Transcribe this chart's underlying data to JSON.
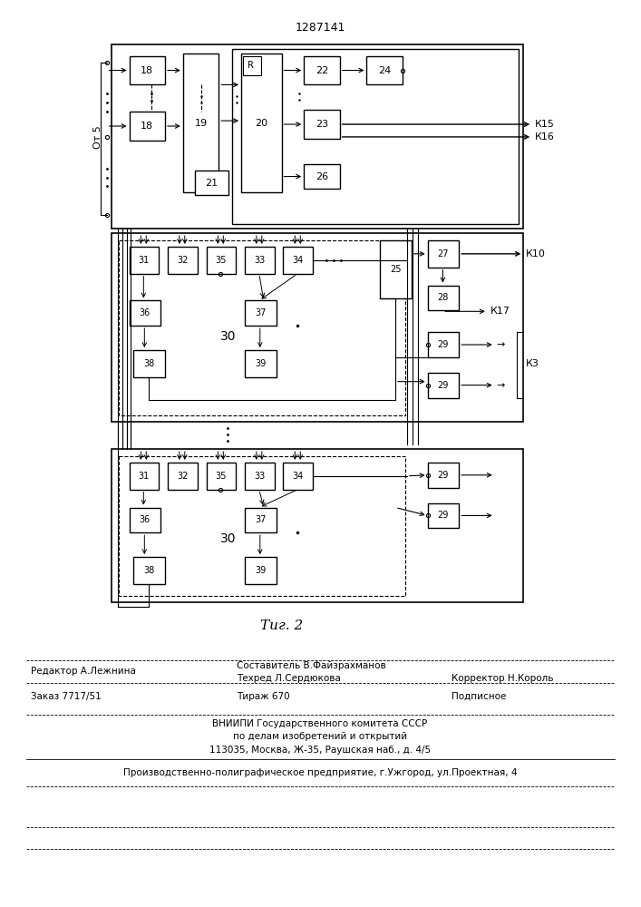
{
  "title": "1287141",
  "fig_label": "Τиг. 2",
  "bg_color": "#ffffff",
  "line_color": "#000000",
  "box_color": "#ffffff",
  "footer": {
    "line1_left": "Редактор А.Лежнина",
    "line1_mid": "Составитель В.Файзрахманов",
    "line2_mid": "Техред Л.Сердюкова",
    "line2_right": "Корректор Н.Король",
    "line3_left": "Заказ 7717/51",
    "line3_mid": "Тираж 670",
    "line3_right": "Подписное",
    "line4": "ВНИИПИ Государственного комитета СССР",
    "line5": "по делам изобретений и открытий",
    "line6": "113035, Москва, Ж-35, Раушская наб., д. 4/5",
    "line7": "Производственно-полиграфическое предприятие, г.Ужгород, ул.Проектная, 4"
  }
}
